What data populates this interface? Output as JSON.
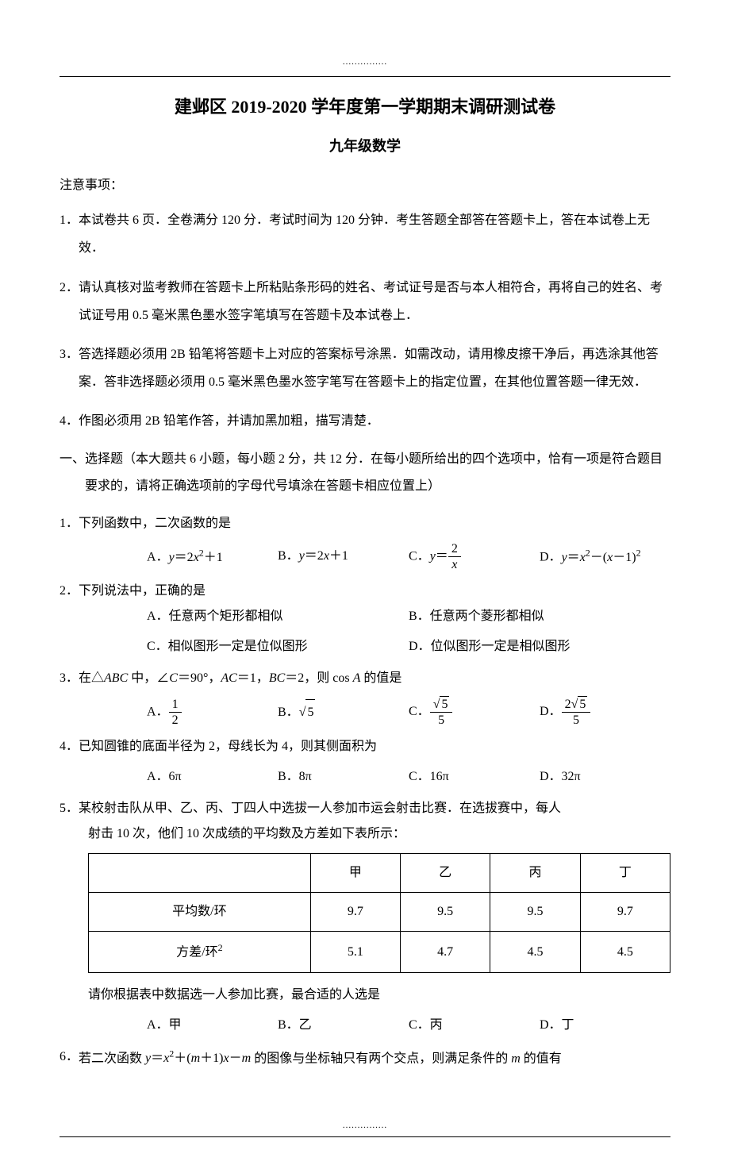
{
  "dots": "...............",
  "title": "建邺区 2019-2020 学年度第一学期期末调研测试卷",
  "subtitle": "九年级数学",
  "notice_label": "注意事项：",
  "notices": [
    {
      "num": "1．",
      "text": "本试卷共 6 页．全卷满分 120 分．考试时间为 120 分钟．考生答题全部答在答题卡上，答在本试卷上无效．"
    },
    {
      "num": "2．",
      "text": "请认真核对监考教师在答题卡上所粘贴条形码的姓名、考试证号是否与本人相符合，再将自己的姓名、考试证号用 0.5 毫米黑色墨水签字笔填写在答题卡及本试卷上．"
    },
    {
      "num": "3．",
      "text": "答选择题必须用 2B 铅笔将答题卡上对应的答案标号涂黑．如需改动，请用橡皮擦干净后，再选涂其他答案．答非选择题必须用 0.5 毫米黑色墨水签字笔写在答题卡上的指定位置，在其他位置答题一律无效．"
    },
    {
      "num": "4．",
      "text": "作图必须用 2B 铅笔作答，并请加黑加粗，描写清楚．"
    }
  ],
  "section1": {
    "num": "一、",
    "text": "选择题（本大题共 6 小题，每小题 2 分，共 12 分．在每小题所给出的四个选项中，恰有一项是符合题目要求的，请将正确选项前的字母代号填涂在答题卡相应位置上）"
  },
  "q1": {
    "num": "1．",
    "text": "下列函数中，二次函数的是",
    "opts": {
      "a_label": "A．",
      "b_label": "B．",
      "c_label": "C．",
      "d_label": "D．"
    }
  },
  "q2": {
    "num": "2．",
    "text": " 下列说法中，正确的是",
    "opts": {
      "a": "A．任意两个矩形都相似",
      "b": "B．任意两个菱形都相似",
      "c": "C．相似图形一定是位似图形",
      "d": "D．位似图形一定是相似图形"
    }
  },
  "q3": {
    "num": "3．",
    "opts": {
      "a_label": "A．",
      "b_label": "B．",
      "c_label": "C．",
      "d_label": "D．"
    }
  },
  "q4": {
    "num": "4．",
    "text": "已知圆锥的底面半径为 2，母线长为 4，则其侧面积为",
    "opts": {
      "a": "A．6π",
      "b": "B．8π",
      "c": "C．16π",
      "d": "D．32π"
    }
  },
  "q5": {
    "num": "5．",
    "text1": "某校射击队从甲、乙、丙、丁四人中选拔一人参加市运会射击比赛．在选拔赛中，每人",
    "text2": "射击 10 次，他们 10 次成绩的平均数及方差如下表所示：",
    "text3": "请你根据表中数据选一人参加比赛，最合适的人选是",
    "table": {
      "headers": [
        "",
        "甲",
        "乙",
        "丙",
        "丁"
      ],
      "row1_label": "平均数/环",
      "row1": [
        "9.7",
        "9.5",
        "9.5",
        "9.7"
      ],
      "row2_label": "方差/环",
      "row2": [
        "5.1",
        "4.7",
        "4.5",
        "4.5"
      ]
    },
    "opts": {
      "a": "A．甲",
      "b": "B．乙",
      "c": "C．丙",
      "d": "D．丁"
    }
  },
  "q6": {
    "num": "6．"
  }
}
